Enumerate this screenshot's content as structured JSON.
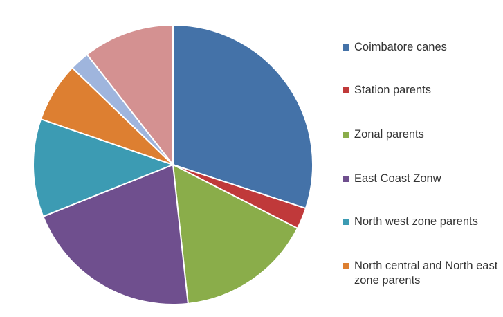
{
  "chart_data": {
    "type": "pie",
    "title": "",
    "legend_position": "right",
    "categories": [
      "Coimbatore canes",
      "Station parents",
      "Zonal parents",
      "East Coast Zonw",
      "North west zone parents",
      "North central and North east zone parents",
      "",
      ""
    ],
    "values": [
      30.5,
      2.5,
      16.0,
      21.0,
      11.5,
      7.0,
      2.3,
      10.7
    ],
    "colors": [
      "#4472a8",
      "#c0393a",
      "#8aad4a",
      "#6f4f8e",
      "#3c9bb3",
      "#dd7f31",
      "#9fb5dd",
      "#d49191"
    ],
    "legend": [
      {
        "label": "Coimbatore canes",
        "color": "#4472a8"
      },
      {
        "label": "Station parents",
        "color": "#c0393a"
      },
      {
        "label": "Zonal parents",
        "color": "#8aad4a"
      },
      {
        "label": "East Coast Zonw",
        "color": "#6f4f8e"
      },
      {
        "label": "North west zone parents",
        "color": "#3c9bb3"
      },
      {
        "label": "North central and North east zone parents",
        "color": "#dd7f31"
      }
    ]
  }
}
